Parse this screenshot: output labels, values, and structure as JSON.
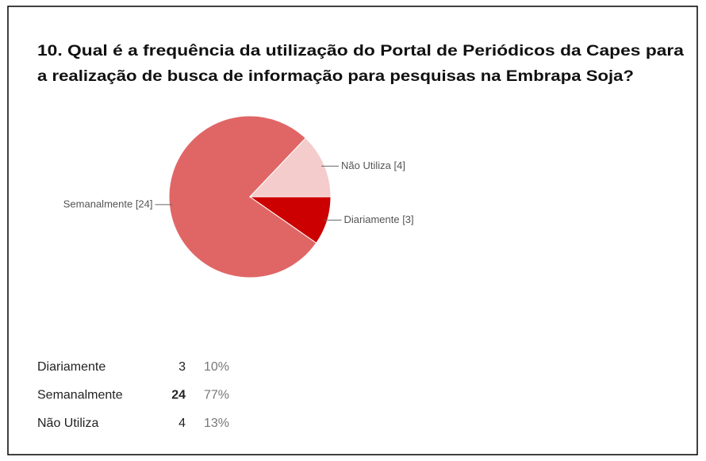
{
  "chart_data": {
    "type": "pie",
    "title_lines": [
      "10. Qual é a frequência da utilização do Portal de Periódicos da Capes para",
      "a realização de busca de informação para pesquisas na Embrapa Soja?"
    ],
    "categories": [
      "Diariamente",
      "Semanalmente",
      "Não Utiliza"
    ],
    "values": [
      3,
      24,
      4
    ],
    "value_labels": [
      "Diariamente [3]",
      "Semanalmente [24]",
      "Não Utiliza [4]"
    ],
    "colors": [
      "#cc0000",
      "#e06666",
      "#f4cccc"
    ]
  },
  "table": {
    "rows": [
      [
        "Diariamente",
        "3",
        "10%"
      ],
      [
        "Semanalmente",
        "24",
        "77%"
      ],
      [
        "Não Utiliza",
        "4",
        "13%"
      ]
    ]
  }
}
